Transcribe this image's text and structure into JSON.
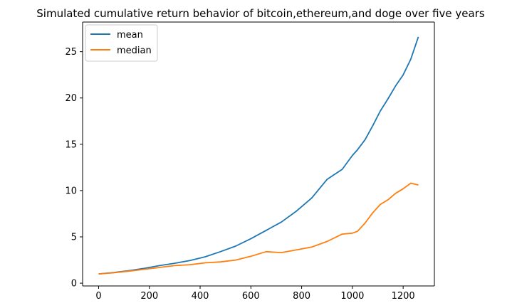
{
  "chart_data": {
    "type": "line",
    "title": "Simulated cumulative return behavior of bitcoin,ethereum,and doge over five years",
    "xlabel": "",
    "ylabel": "",
    "xlim": [
      -63,
      1323
    ],
    "ylim": [
      -0.3,
      28.2
    ],
    "xticks": [
      0,
      200,
      400,
      600,
      800,
      1000,
      1200
    ],
    "yticks": [
      0,
      5,
      10,
      15,
      20,
      25
    ],
    "grid": false,
    "legend_position": "upper left",
    "x": [
      0,
      60,
      120,
      180,
      240,
      300,
      360,
      420,
      480,
      540,
      600,
      660,
      720,
      780,
      840,
      900,
      960,
      1000,
      1020,
      1050,
      1080,
      1110,
      1140,
      1170,
      1200,
      1230,
      1260
    ],
    "series": [
      {
        "name": "mean",
        "color": "#1f77b4",
        "values": [
          1.0,
          1.15,
          1.35,
          1.6,
          1.9,
          2.15,
          2.45,
          2.85,
          3.4,
          4.0,
          4.8,
          5.7,
          6.6,
          7.8,
          9.2,
          11.2,
          12.3,
          13.8,
          14.4,
          15.5,
          17.0,
          18.6,
          19.9,
          21.3,
          22.5,
          24.2,
          26.6
        ]
      },
      {
        "name": "median",
        "color": "#ff7f0e",
        "values": [
          1.0,
          1.12,
          1.3,
          1.5,
          1.7,
          1.9,
          2.0,
          2.2,
          2.3,
          2.5,
          2.9,
          3.4,
          3.3,
          3.6,
          3.9,
          4.5,
          5.3,
          5.4,
          5.6,
          6.5,
          7.6,
          8.5,
          9.0,
          9.7,
          10.2,
          10.8,
          10.6
        ]
      }
    ]
  }
}
